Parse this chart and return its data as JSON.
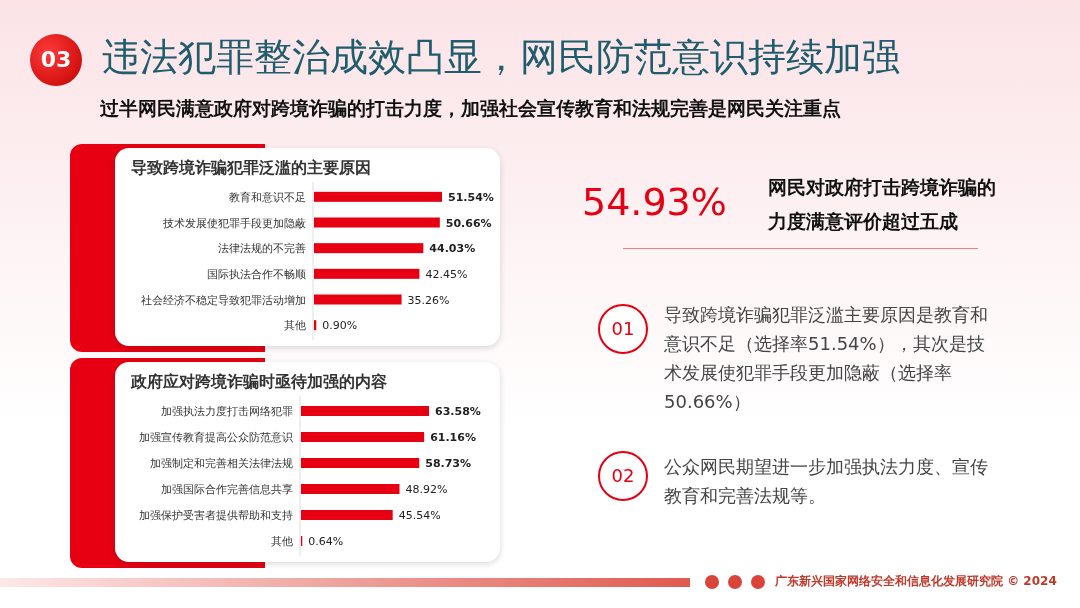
{
  "chart_data": [
    {
      "type": "other",
      "title": "违法犯罪整治成效凸显，网民防范意识持续加强",
      "subtitle": "过半网民满意政府对跨境诈骗的打击力度，加强社会宣传教育和法规完善是网民关注重点",
      "annotations": [
        "03"
      ]
    },
    {
      "type": "bar",
      "orientation": "horizontal",
      "title": "导致跨境诈骗犯罪泛滥的主要原因",
      "categories": [
        "教育和意识不足",
        "技术发展使犯罪手段更加隐蔽",
        "法律法规的不完善",
        "国际执法合作不畅顺",
        "社会经济不稳定导致犯罪活动增加",
        "其他"
      ],
      "values": [
        51.54,
        50.66,
        44.03,
        42.45,
        35.26,
        0.9
      ],
      "value_labels": [
        "51.54%",
        "50.66%",
        "44.03%",
        "42.45%",
        "35.26%",
        "0.90%"
      ],
      "color": "#e60012"
    },
    {
      "type": "bar",
      "orientation": "horizontal",
      "title": "政府应对跨境诈骗时亟待加强的内容",
      "categories": [
        "加强执法力度打击网络犯罪",
        "加强宣传教育提高公众防范意识",
        "加强制定和完善相关法律法规",
        "加强国际合作完善信息共享",
        "加强保护受害者提供帮助和支持",
        "其他"
      ],
      "values": [
        63.58,
        61.16,
        58.73,
        48.92,
        45.54,
        0.64
      ],
      "value_labels": [
        "63.58%",
        "61.16%",
        "58.73%",
        "48.92%",
        "45.54%",
        "0.64%"
      ],
      "color": "#e60012"
    },
    {
      "type": "other",
      "annotations": [
        "54.93%",
        "网民对政府打击跨境诈骗的力度满意评价超过五成",
        "01",
        "导致跨境诈骗犯罪泛滥主要原因是教育和意识不足（选择率51.54%），其次是技术发展使犯罪手段更加隐蔽（选择率50.66%）",
        "02",
        "公众网民期望进一步加强执法力度、宣传教育和完善法规等。",
        "广东新兴国家网络安全和信息化发展研究院 © 2024"
      ]
    }
  ]
}
